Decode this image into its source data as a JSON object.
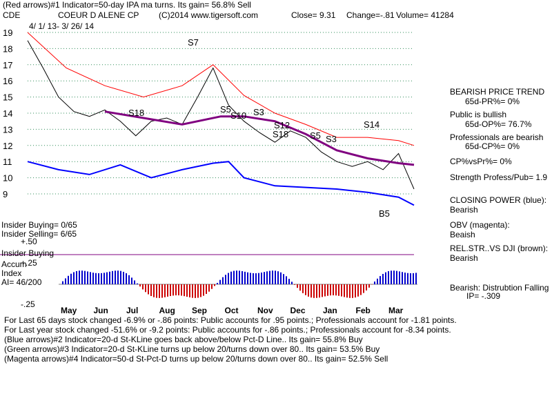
{
  "header": {
    "line1": "(Red arrows)#1 Indicator=50-day IPA ma turns. Its gain= 56.8% Sell",
    "ticker": "CDE",
    "company": "COEUR D ALENE CP",
    "copyright": "(C)2014 www.tigersoft.com",
    "close": "Close=  9.31",
    "change": "Change=-.81",
    "volume": "Volume= 41284",
    "date_range": "4/ 1/ 13- 3/ 26/ 14"
  },
  "right_panel": {
    "trend_title": "BEARISH PRICE TREND",
    "pr": "65d-PR%= 0%",
    "public_title": "Public is bullish",
    "op": "65d-OP%= 76.7%",
    "prof_title": "Professionals are bearish",
    "cp": "65d-CP%= 0%",
    "cpvspr": "CP%vsPr%=  0%",
    "strength": "Strength Profess/Pub= 1.9",
    "closing_power_label": "CLOSING POWER (blue):",
    "closing_power_value": "Bearish",
    "obv_label": "OBV (magenta):",
    "obv_value": "Beaish",
    "relstr_label": "REL.STR..VS DJI (brown):",
    "relstr_value": "Bearish",
    "dist_label": "Bearish: Distrubtion Falling",
    "ip": "IP= -.309"
  },
  "left_labels": {
    "insider_buying": "Insider Buying= 0/65",
    "insider_selling": "Insider Selling= 6/65",
    "insider_buying2": "Insider Buying",
    "accum": "Accum",
    "index": "Index",
    "ai": "AI= 46/200",
    "plus50": "+.50",
    "plus25": "+.25",
    "minus25": "-.25"
  },
  "footer": {
    "line1": "For Last 65 days stock changed -6.9% or -.86 points:  Public accounts for  .95 points.;  Professionals account for -1.81 points.",
    "line2": "For Last year stock changed -51.6% or -9.2 points:  Public accounts for -.86 points.;  Professionals account for -8.34 points.",
    "line3": "(Blue arrows)#2 Indicator=20-d St-KLine goes back above/below Pct-D Line.. Its gain= 55.8% Buy",
    "line4": "(Green arrows)#3 Indicator=20-d St-KLine turns up below 20/turns down over 80.. Its gain= 53.5% Buy",
    "line5": "(Magenta arrows)#4 Indicator=50-d St-Pct-D turns up below 20/turns down over 80.. Its gain= 52.5% Sell"
  },
  "chart_data": {
    "type": "line",
    "title": "COEUR D ALENE CP",
    "y_ticks": [
      "19",
      "18",
      "17",
      "16",
      "15",
      "14",
      "13",
      "12",
      "11",
      "10",
      "9"
    ],
    "ylim": [
      9,
      19
    ],
    "x_ticks": [
      "May",
      "Jun",
      "Jul",
      "Aug",
      "Sep",
      "Oct",
      "Nov",
      "Dec",
      "Jan",
      "Feb",
      "Mar"
    ],
    "series": [
      {
        "color": "#000000",
        "x": [
          0,
          4,
          8,
          12,
          16,
          20,
          24,
          28,
          32,
          36,
          40,
          44,
          48,
          52,
          56,
          60,
          64,
          68,
          72,
          76,
          80,
          84,
          88,
          92,
          96,
          100
        ],
        "values": [
          18.5,
          16.8,
          15.0,
          14.1,
          13.8,
          14.2,
          13.5,
          12.6,
          13.5,
          13.7,
          13.3,
          15.0,
          16.8,
          14.5,
          13.5,
          12.8,
          12.2,
          12.9,
          12.5,
          11.6,
          11.0,
          10.7,
          11.0,
          10.5,
          11.5,
          9.3
        ]
      },
      {
        "color": "#800080",
        "x": [
          0,
          10,
          20,
          30,
          40,
          50,
          56,
          64,
          72,
          80,
          88,
          96,
          100
        ],
        "values": [
          null,
          null,
          14.1,
          13.7,
          13.3,
          13.8,
          13.8,
          13.5,
          12.7,
          11.7,
          11.2,
          10.9,
          10.8
        ]
      },
      {
        "color": "#ff0000",
        "x": [
          0,
          10,
          20,
          30,
          40,
          48,
          56,
          64,
          72,
          80,
          88,
          96,
          100
        ],
        "values": [
          19.0,
          16.8,
          15.7,
          15.0,
          15.7,
          17.0,
          15.1,
          14.0,
          13.3,
          12.5,
          12.5,
          12.3,
          12.0
        ]
      },
      {
        "color": "#0000ff",
        "x": [
          0,
          8,
          16,
          24,
          32,
          40,
          48,
          52,
          56,
          64,
          72,
          80,
          88,
          96,
          100
        ],
        "values": [
          11.0,
          10.5,
          10.2,
          10.8,
          10.0,
          10.5,
          10.9,
          11.0,
          10.0,
          9.5,
          9.4,
          9.3,
          9.1,
          8.8,
          8.3
        ]
      }
    ],
    "signals": [
      "S7",
      "S5",
      "S18",
      "S3",
      "S18",
      "S12",
      "S10",
      "S5",
      "S3",
      "S14",
      "B5"
    ]
  }
}
